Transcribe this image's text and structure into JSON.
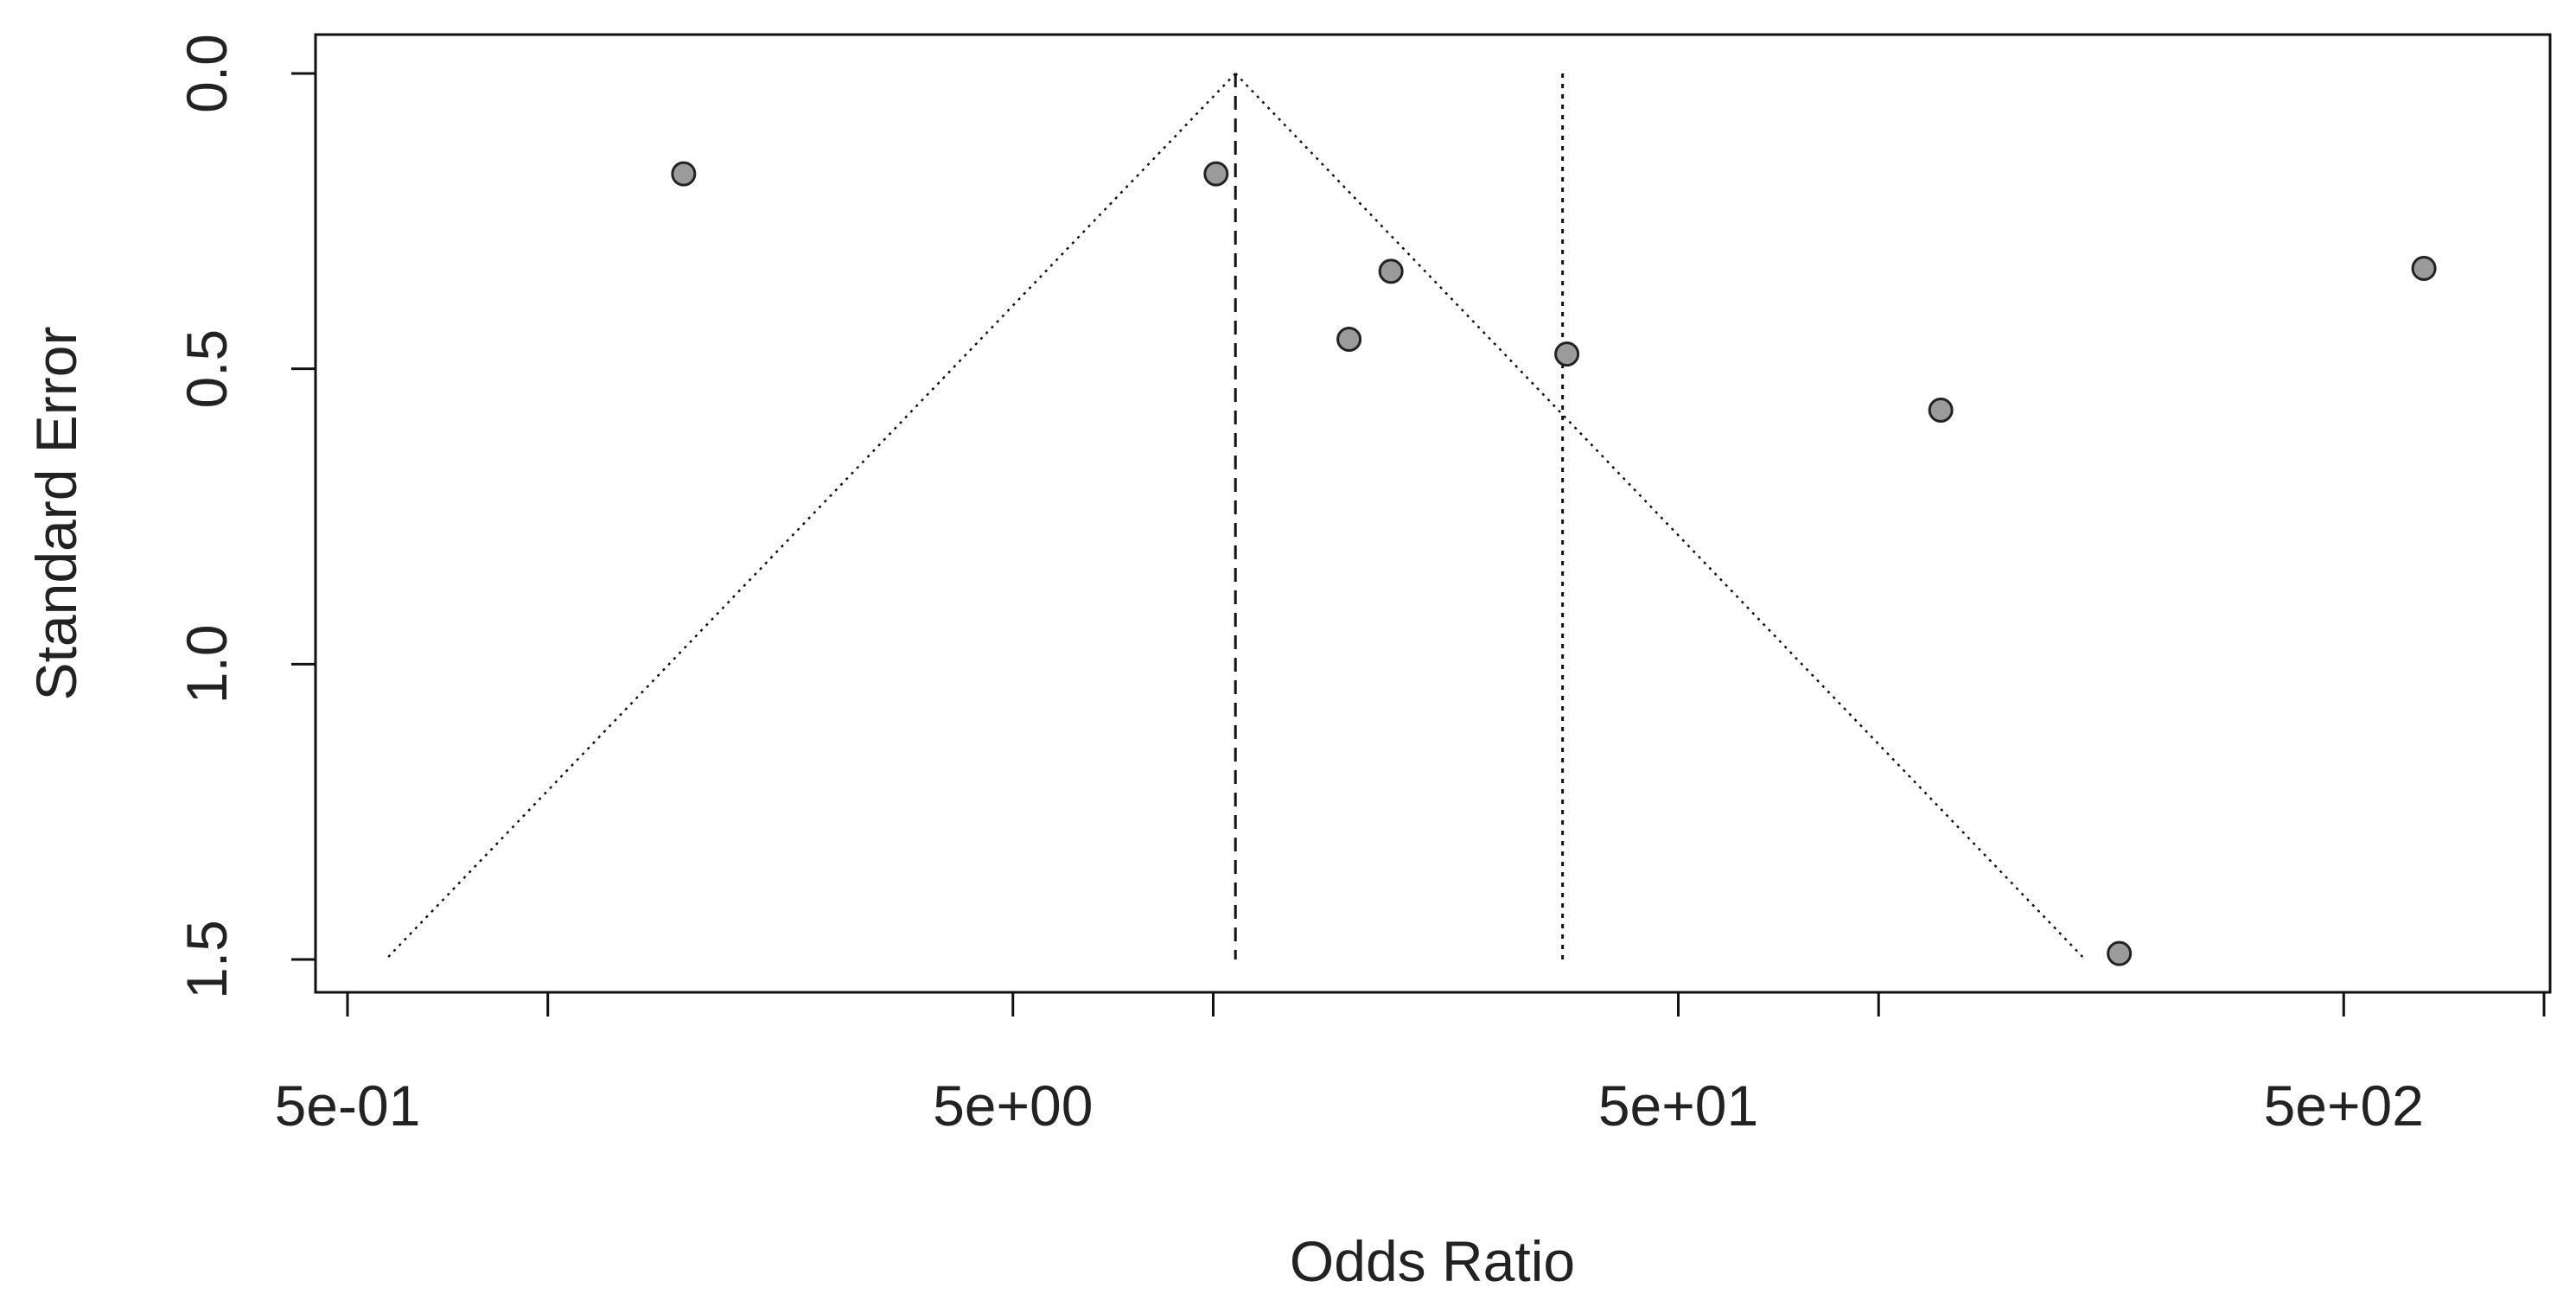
{
  "chart_data": {
    "type": "scatter",
    "subtype": "funnel-plot",
    "title": "",
    "xlabel": "Odds Ratio",
    "ylabel": "Standard Error",
    "x_scale": "log",
    "y_reversed": true,
    "xlim": [
      0.42,
      850
    ],
    "ylim": [
      0,
      1.5
    ],
    "x_ticks": [
      0.5,
      1,
      5,
      10,
      50,
      100,
      500,
      1000
    ],
    "x_tick_labels": [
      {
        "value": 0.5,
        "label": "5e-01"
      },
      {
        "value": 5,
        "label": "5e+00"
      },
      {
        "value": 50,
        "label": "5e+01"
      },
      {
        "value": 500,
        "label": "5e+02"
      }
    ],
    "y_ticks": [
      {
        "value": 0.0,
        "label": "0.0"
      },
      {
        "value": 0.5,
        "label": "0.5"
      },
      {
        "value": 1.0,
        "label": "1.0"
      },
      {
        "value": 1.5,
        "label": "1.5"
      }
    ],
    "pooled_estimate_or": 10.8,
    "second_reference_or": 33.5,
    "funnel_z": 1.96,
    "points": [
      {
        "or": 1.6,
        "se": 0.17
      },
      {
        "or": 10.1,
        "se": 0.17
      },
      {
        "or": 16.0,
        "se": 0.45
      },
      {
        "or": 18.5,
        "se": 0.335
      },
      {
        "or": 34.0,
        "se": 0.475
      },
      {
        "or": 124.0,
        "se": 0.57
      },
      {
        "or": 230.0,
        "se": 1.49
      },
      {
        "or": 660.0,
        "se": 0.33
      }
    ],
    "grid": false,
    "marker_fill": "#9b9b9b",
    "marker_stroke": "#222222",
    "line_color": "#111111"
  }
}
